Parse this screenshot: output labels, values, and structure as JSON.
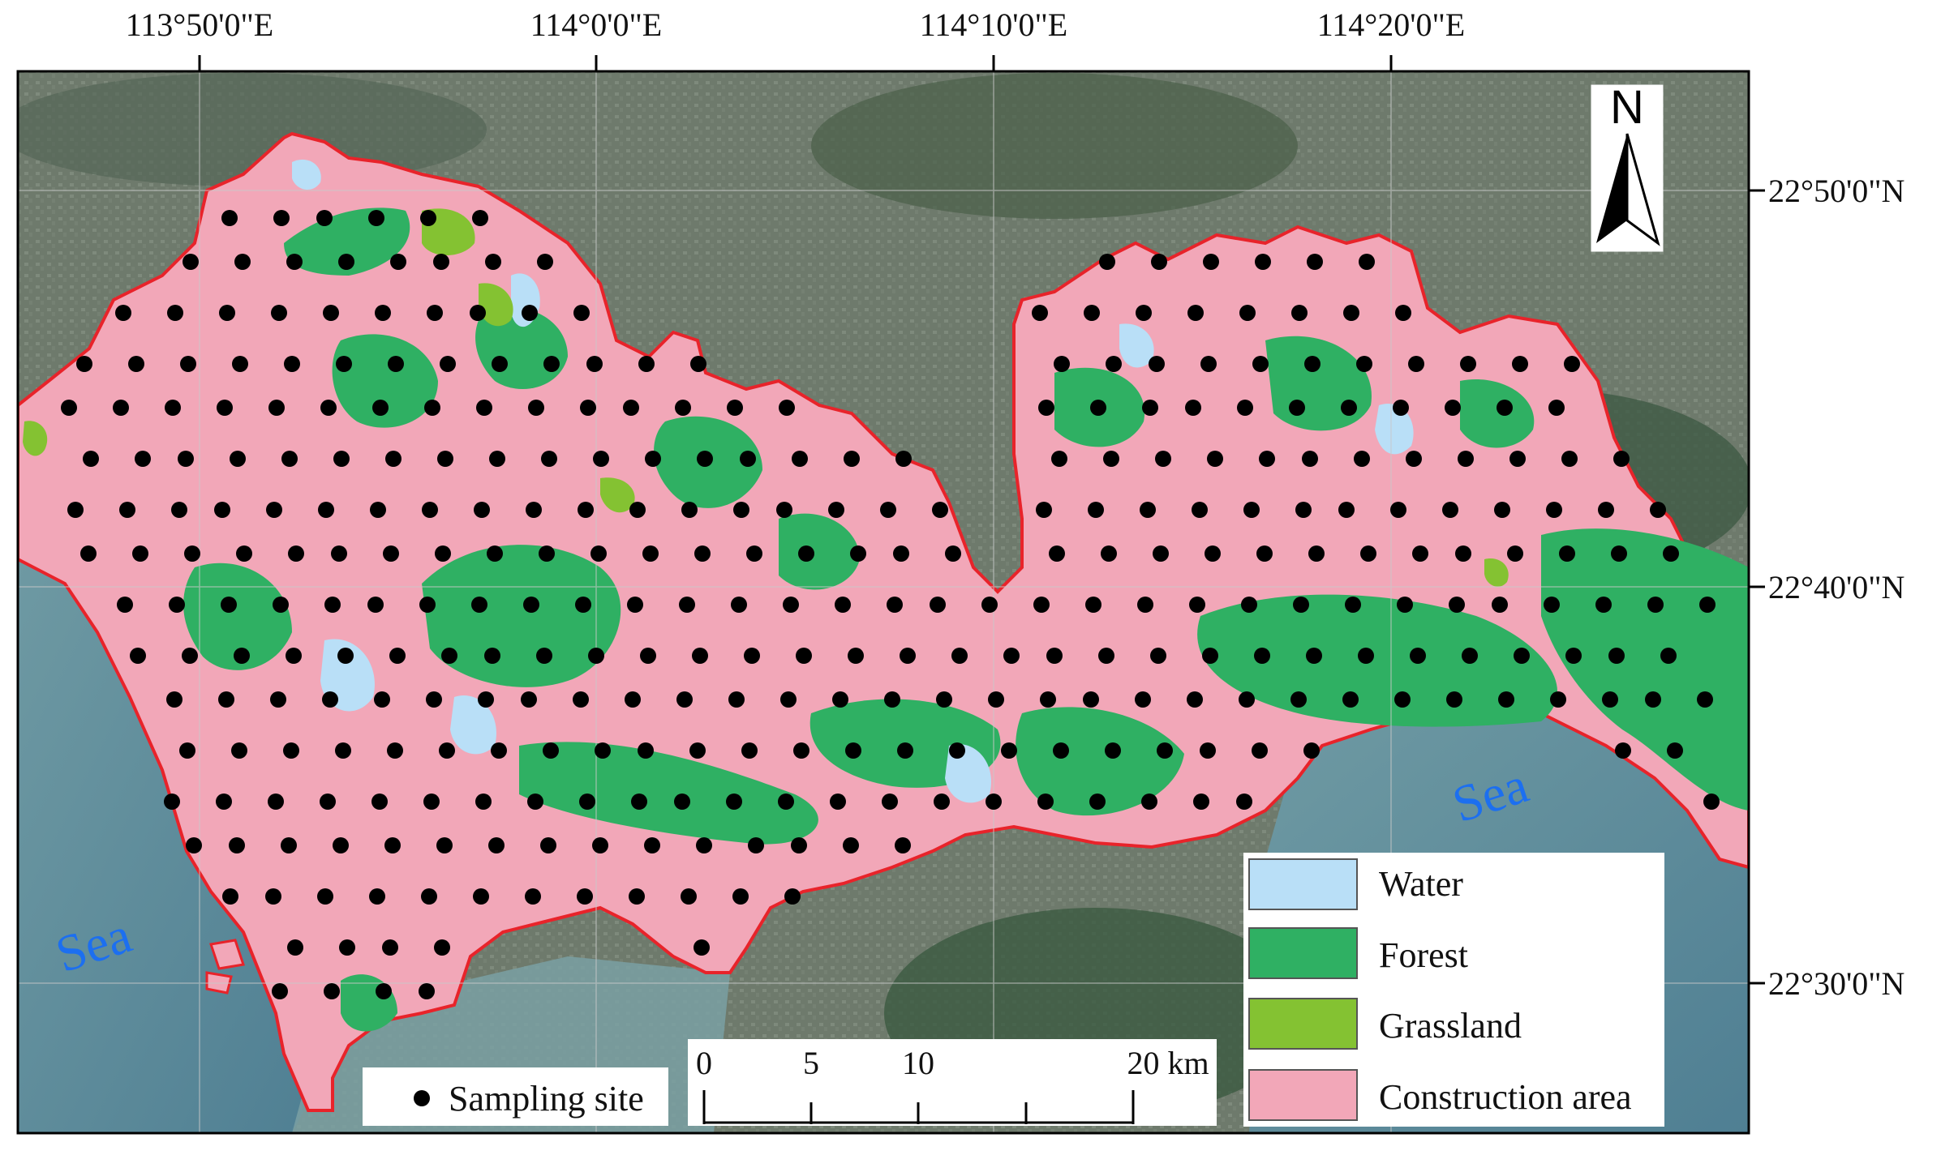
{
  "map": {
    "title": "",
    "longitude_labels": [
      "113°50'0\"E",
      "114°0'0\"E",
      "114°10'0\"E",
      "114°20'0\"E"
    ],
    "latitude_labels": [
      "22°50'0\"N",
      "22°40'0\"N",
      "22°30'0\"N"
    ],
    "sea_labels": [
      "Sea",
      "Sea"
    ],
    "north_arrow": {
      "letter": "N",
      "icon": "north-arrow-icon"
    },
    "scale_bar": {
      "ticks": [
        "0",
        "5",
        "10",
        "20 km"
      ],
      "unit": "km"
    },
    "sampling_legend": {
      "symbol": "black-dot",
      "label": "Sampling site"
    },
    "land_cover_legend": [
      {
        "label": "Water",
        "color": "#b9dff7"
      },
      {
        "label": "Forest",
        "color": "#2fb063"
      },
      {
        "label": "Grassland",
        "color": "#84c232"
      },
      {
        "label": "Construction area",
        "color": "#f2a7b8"
      }
    ],
    "colors": {
      "boundary": "#e8232a",
      "sea": "#5b8ea0",
      "satellite_land": "#6f7a6c",
      "sampling_dot": "#000000"
    }
  }
}
